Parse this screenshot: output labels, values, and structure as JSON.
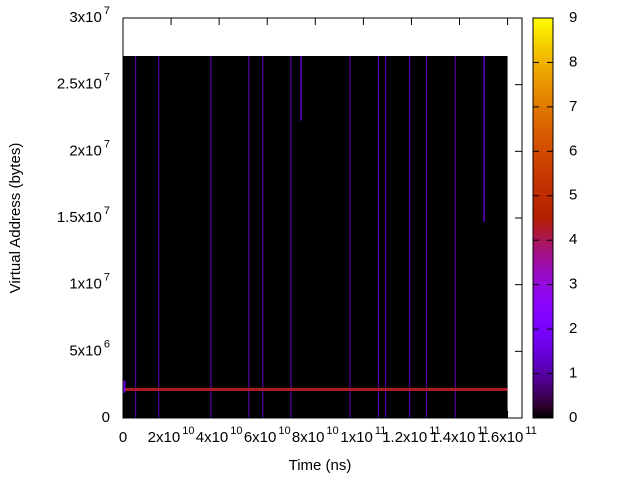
{
  "chart_data": {
    "type": "heatmap",
    "xlabel": "Time (ns)",
    "ylabel": "Virtual Address (bytes)",
    "xlim": [
      0,
      166000000000
    ],
    "ylim": [
      0,
      30000000
    ],
    "xticks": [
      0,
      {
        "value": 20000000000,
        "label": "2x10",
        "sup": "10"
      },
      {
        "value": 40000000000,
        "label": "4x10",
        "sup": "10"
      },
      {
        "value": 60000000000,
        "label": "6x10",
        "sup": "10"
      },
      {
        "value": 80000000000,
        "label": "8x10",
        "sup": "10"
      },
      {
        "value": 100000000000,
        "label": "1x10",
        "sup": "11"
      },
      {
        "value": 120000000000,
        "label": "1.2x10",
        "sup": "11"
      },
      {
        "value": 140000000000,
        "label": "1.4x10",
        "sup": "11"
      },
      {
        "value": 160000000000,
        "label": "1.6x10",
        "sup": "11"
      }
    ],
    "yticks": [
      0,
      {
        "value": 5000000,
        "label": "5x10",
        "sup": "6"
      },
      {
        "value": 10000000,
        "label": "1x10",
        "sup": "7"
      },
      {
        "value": 15000000,
        "label": "1.5x10",
        "sup": "7"
      },
      {
        "value": 20000000,
        "label": "2x10",
        "sup": "7"
      },
      {
        "value": 25000000,
        "label": "2.5x10",
        "sup": "7"
      },
      {
        "value": 30000000,
        "label": "3x10",
        "sup": "7"
      }
    ],
    "cblim": [
      0,
      9
    ],
    "cbticks": [
      0,
      1,
      2,
      3,
      4,
      5,
      6,
      7,
      8,
      9
    ],
    "cells": [
      {
        "x": [
          0,
          160000000000
        ],
        "y": [
          0,
          27150000
        ],
        "value": 0
      },
      {
        "x": [
          5000000000,
          5500000000
        ],
        "y": [
          0,
          27150000
        ],
        "value": 1
      },
      {
        "x": [
          14600000000,
          15100000000
        ],
        "y": [
          0,
          27150000
        ],
        "value": 1
      },
      {
        "x": [
          36300000000,
          36800000000
        ],
        "y": [
          0,
          27150000
        ],
        "value": 1
      },
      {
        "x": [
          52100000000,
          52600000000
        ],
        "y": [
          0,
          27150000
        ],
        "value": 1
      },
      {
        "x": [
          57900000000,
          58400000000
        ],
        "y": [
          0,
          27150000
        ],
        "value": 1
      },
      {
        "x": [
          69600000000,
          70100000000
        ],
        "y": [
          0,
          27150000
        ],
        "value": 1
      },
      {
        "x": [
          73800000000,
          74300000000
        ],
        "y": [
          22300000,
          27150000
        ],
        "value": 2
      },
      {
        "x": [
          94200000000,
          94700000000
        ],
        "y": [
          0,
          27150000
        ],
        "value": 1
      },
      {
        "x": [
          106000000000,
          106500000000
        ],
        "y": [
          0,
          27150000
        ],
        "value": 1
      },
      {
        "x": [
          109000000000,
          109500000000
        ],
        "y": [
          0,
          27150000
        ],
        "value": 1
      },
      {
        "x": [
          119000000000,
          119500000000
        ],
        "y": [
          0,
          27150000
        ],
        "value": 1
      },
      {
        "x": [
          126000000000,
          126500000000
        ],
        "y": [
          0,
          27150000
        ],
        "value": 1
      },
      {
        "x": [
          138000000000,
          138500000000
        ],
        "y": [
          0,
          27150000
        ],
        "value": 1
      },
      {
        "x": [
          150000000000,
          150500000000
        ],
        "y": [
          14700000,
          27150000
        ],
        "value": 2
      },
      {
        "x": [
          0,
          160000000000
        ],
        "y": [
          2030000,
          2250000
        ],
        "value": 4.3
      },
      {
        "x": [
          0,
          1000000000
        ],
        "y": [
          1900000,
          2800000
        ],
        "value": 2
      }
    ]
  }
}
